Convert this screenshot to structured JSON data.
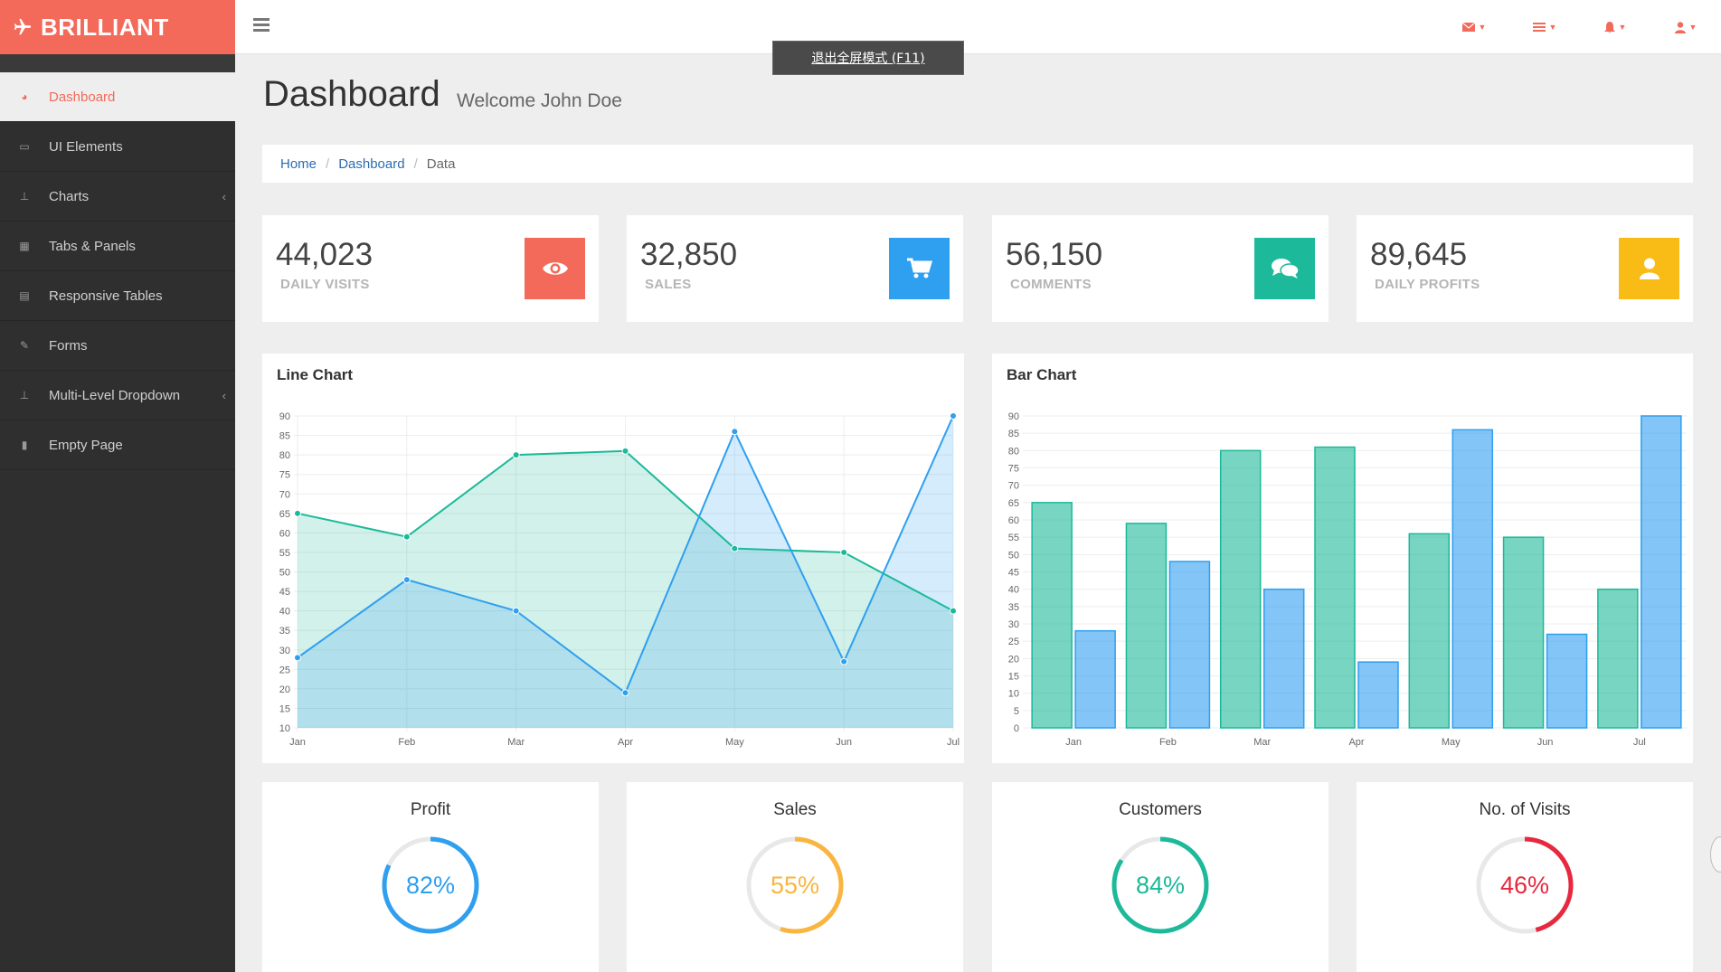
{
  "brand": {
    "name": "BRILLIANT",
    "icon": "plane-icon"
  },
  "sidebar": {
    "items": [
      {
        "label": "Dashboard",
        "icon": "dashboard-icon",
        "active": true,
        "chevron": false
      },
      {
        "label": "UI Elements",
        "icon": "desktop-icon",
        "active": false,
        "chevron": false
      },
      {
        "label": "Charts",
        "icon": "sitemap-icon",
        "active": false,
        "chevron": true
      },
      {
        "label": "Tabs & Panels",
        "icon": "qrcode-icon",
        "active": false,
        "chevron": false
      },
      {
        "label": "Responsive Tables",
        "icon": "table-icon",
        "active": false,
        "chevron": false
      },
      {
        "label": "Forms",
        "icon": "edit-icon",
        "active": false,
        "chevron": false
      },
      {
        "label": "Multi-Level Dropdown",
        "icon": "sitemap-icon",
        "active": false,
        "chevron": true
      },
      {
        "label": "Empty Page",
        "icon": "file-icon",
        "active": false,
        "chevron": false
      }
    ]
  },
  "topbar": {
    "icons": [
      "envelope-icon",
      "tasks-icon",
      "bell-icon",
      "user-icon"
    ]
  },
  "fullscreen_tooltip": "退出全屏模式 (F11)",
  "header": {
    "title": "Dashboard",
    "subtitle": "Welcome John Doe"
  },
  "breadcrumb": {
    "items": [
      "Home",
      "Dashboard"
    ],
    "current": "Data"
  },
  "stats": [
    {
      "value": "44,023",
      "label": "DAILY VISITS",
      "icon": "eye-icon",
      "color": "#f36a5a"
    },
    {
      "value": "32,850",
      "label": "SALES",
      "icon": "shopping-cart-icon",
      "color": "#2f9ff0"
    },
    {
      "value": "56,150",
      "label": "COMMENTS",
      "icon": "comments-icon",
      "color": "#1cb99a"
    },
    {
      "value": "89,645",
      "label": "DAILY PROFITS",
      "icon": "user-icon",
      "color": "#f9bc16"
    }
  ],
  "panels": {
    "line_title": "Line Chart",
    "bar_title": "Bar Chart"
  },
  "chart_data": [
    {
      "type": "line",
      "title": "Line Chart",
      "categories": [
        "Jan",
        "Feb",
        "Mar",
        "Apr",
        "May",
        "Jun",
        "Jul"
      ],
      "ylim": [
        10,
        90
      ],
      "yticks": [
        10,
        15,
        20,
        25,
        30,
        35,
        40,
        45,
        50,
        55,
        60,
        65,
        70,
        75,
        80,
        85,
        90
      ],
      "grid": true,
      "series": [
        {
          "values": [
            65,
            59,
            80,
            81,
            56,
            55,
            40
          ],
          "color": "#1cb99a"
        },
        {
          "values": [
            28,
            48,
            40,
            19,
            86,
            27,
            90
          ],
          "color": "#2f9ff0"
        }
      ]
    },
    {
      "type": "bar",
      "title": "Bar Chart",
      "categories": [
        "Jan",
        "Feb",
        "Mar",
        "Apr",
        "May",
        "Jun",
        "Jul"
      ],
      "ylim": [
        0,
        90
      ],
      "yticks": [
        0,
        5,
        10,
        15,
        20,
        25,
        30,
        35,
        40,
        45,
        50,
        55,
        60,
        65,
        70,
        75,
        80,
        85,
        90
      ],
      "grid": true,
      "series": [
        {
          "values": [
            65,
            59,
            80,
            81,
            56,
            55,
            40
          ],
          "color": "#1cb99a"
        },
        {
          "values": [
            28,
            48,
            40,
            19,
            86,
            27,
            90
          ],
          "color": "#2f9ff0"
        }
      ]
    }
  ],
  "donuts": [
    {
      "title": "Profit",
      "value": 82,
      "label": "82%",
      "color": "#2f9ff0"
    },
    {
      "title": "Sales",
      "value": 55,
      "label": "55%",
      "color": "#f9b53f"
    },
    {
      "title": "Customers",
      "value": 84,
      "label": "84%",
      "color": "#1cb99a"
    },
    {
      "title": "No. of Visits",
      "value": 46,
      "label": "46%",
      "color": "#e7283f"
    }
  ]
}
